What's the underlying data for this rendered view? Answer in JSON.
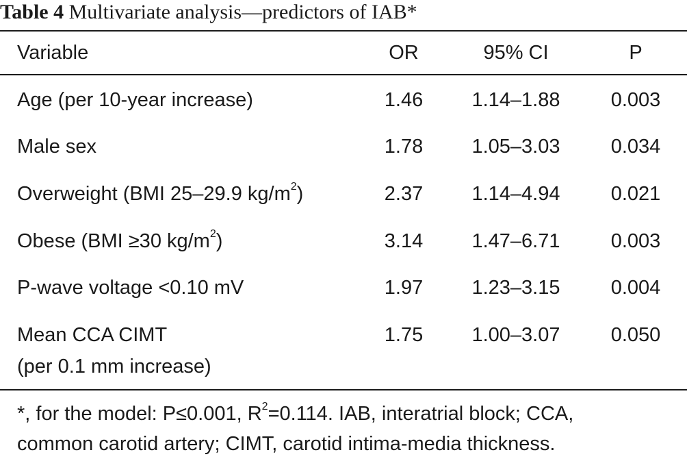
{
  "caption": {
    "label": "Table 4",
    "text": "Multivariate analysis—predictors of IAB*"
  },
  "header": {
    "variable": "Variable",
    "or": "OR",
    "ci": "95% CI",
    "p": "P"
  },
  "rows": [
    {
      "variable": "Age (per 10-year increase)",
      "or": "1.46",
      "ci": "1.14–1.88",
      "p": "0.003"
    },
    {
      "variable": "Male sex",
      "or": "1.78",
      "ci": "1.05–3.03",
      "p": "0.034"
    },
    {
      "variable_pre": "Overweight (BMI 25–29.9 kg/m",
      "variable_sup": "2",
      "variable_post": ")",
      "or": "2.37",
      "ci": "1.14–4.94",
      "p": "0.021"
    },
    {
      "variable_pre": "Obese (BMI ≥30 kg/m",
      "variable_sup": "2",
      "variable_post": ")",
      "or": "3.14",
      "ci": "1.47–6.71",
      "p": "0.003"
    },
    {
      "variable": "P-wave voltage <0.10 mV",
      "or": "1.97",
      "ci": "1.23–3.15",
      "p": "0.004"
    },
    {
      "variable_line1": "Mean CCA CIMT",
      "variable_line2": "(per 0.1 mm increase)",
      "or": "1.75",
      "ci": "1.00–3.07",
      "p": "0.050"
    }
  ],
  "footnote": {
    "line1_pre": "*, for the model: P≤0.001, R",
    "line1_sup": "2",
    "line1_post": "=0.114. IAB, interatrial block; CCA,",
    "line2": "common carotid artery; CIMT, carotid intima-media thickness."
  }
}
